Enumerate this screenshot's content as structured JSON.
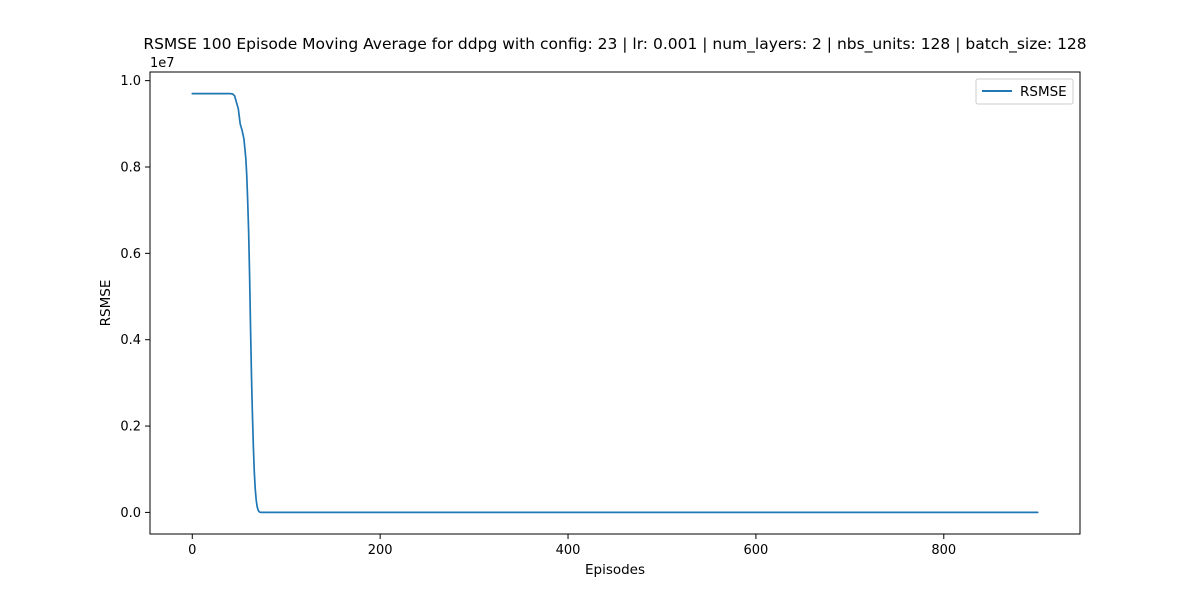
{
  "chart_data": {
    "type": "line",
    "title": "RSMSE 100 Episode Moving Average for ddpg with config: 23 | lr: 0.001 | num_layers: 2 | nbs_units: 128 | batch_size: 128",
    "xlabel": "Episodes",
    "ylabel": "RSMSE",
    "y_offset_text": "1e7",
    "xlim": [
      -45,
      945
    ],
    "ylim": [
      -500000,
      10200000
    ],
    "x_ticks": [
      0,
      200,
      400,
      600,
      800
    ],
    "x_tick_labels": [
      "0",
      "200",
      "400",
      "600",
      "800"
    ],
    "y_ticks": [
      0,
      2000000,
      4000000,
      6000000,
      8000000,
      10000000
    ],
    "y_tick_labels": [
      "0.0",
      "0.2",
      "0.4",
      "0.6",
      "0.8",
      "1.0"
    ],
    "grid": false,
    "legend_position": "upper right",
    "series": [
      {
        "name": "RSMSE",
        "color": "#1f77b4",
        "x": [
          0,
          40,
          43,
          45,
          47,
          49,
          51,
          53,
          55,
          57,
          58,
          59,
          60,
          61,
          62,
          63,
          64,
          65,
          66,
          67,
          68,
          69,
          70,
          71,
          72,
          73,
          74,
          75,
          76,
          78,
          80,
          100,
          200,
          400,
          600,
          800,
          900
        ],
        "y": [
          9700000,
          9700000,
          9690000,
          9650000,
          9500000,
          9350000,
          9000000,
          8850000,
          8650000,
          8200000,
          7800000,
          7200000,
          6500000,
          5500000,
          4300000,
          3200000,
          2300000,
          1550000,
          950000,
          550000,
          300000,
          140000,
          60000,
          20000,
          5000,
          1000,
          0,
          0,
          0,
          0,
          0,
          0,
          0,
          0,
          0,
          0,
          0
        ]
      }
    ]
  }
}
